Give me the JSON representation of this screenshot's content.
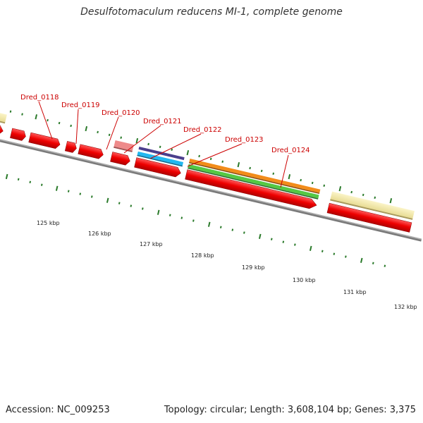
{
  "title": "Desulfotomaculum reducens MI-1, complete genome",
  "footer": {
    "accession": "Accession: NC_009253",
    "stats": "Topology: circular; Length: 3,608,104 bp; Genes: 3,375"
  },
  "colors": {
    "gene_red": "#ee0000",
    "gene_pink": "#ee8a8a",
    "backbone": "#7a7a7a",
    "tick": "#2a7a2a",
    "label": "#cc0000",
    "tan": "#f2e8a8",
    "navy": "#4a3f8c",
    "cyan": "#22b8f0",
    "orange": "#f28c1a",
    "green": "#55c844"
  },
  "gene_labels": [
    "Dred_0118",
    "Dred_0119",
    "Dred_0120",
    "Dred_0121",
    "Dred_0122",
    "Dred_0123",
    "Dred_0124"
  ],
  "scale_labels": [
    "125 kbp",
    "126 kbp",
    "127 kbp",
    "128 kbp",
    "129 kbp",
    "130 kbp",
    "131 kbp",
    "132 kbp"
  ]
}
